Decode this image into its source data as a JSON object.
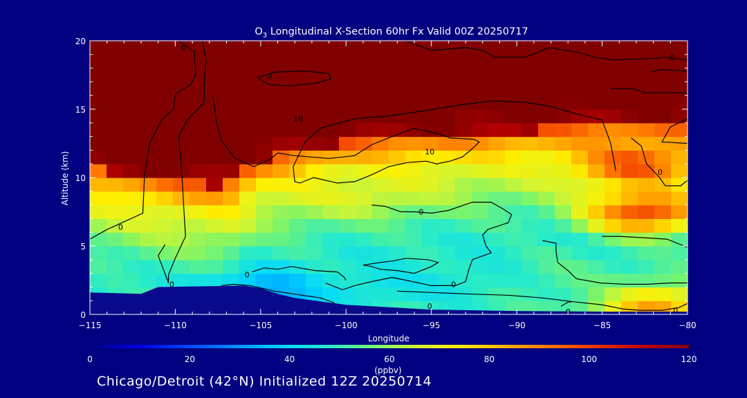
{
  "chart_data": {
    "type": "heatmap",
    "title_prefix": "O",
    "title_subscript": "3",
    "title_rest": " Longitudinal X-Section 60hr  Fx Valid 00Z 20250717",
    "xlabel": "Longitude",
    "ylabel": "Altitude (km)",
    "xlim": [
      -115,
      -80
    ],
    "ylim": [
      0,
      20
    ],
    "xticks": [
      -115,
      -110,
      -105,
      -100,
      -95,
      -90,
      -85,
      -80
    ],
    "xtick_labels": [
      "−115",
      "−110",
      "−105",
      "−100",
      "−95",
      "−90",
      "−85",
      "−80"
    ],
    "yticks": [
      0,
      5,
      10,
      15,
      20
    ],
    "ytick_labels": [
      "0",
      "5",
      "10",
      "15",
      "20"
    ],
    "colorbar": {
      "label": "(ppbv)",
      "min": 0,
      "max": 120,
      "ticks": [
        0,
        20,
        40,
        60,
        80,
        100,
        120
      ],
      "tick_labels": [
        "0",
        "20",
        "40",
        "60",
        "80",
        "100",
        "120"
      ]
    },
    "field_description": "Ozone mixing ratio (ppbv) vs longitude and altitude",
    "ozone_profile_km": [
      [
        0,
        50
      ],
      [
        2,
        47
      ],
      [
        4,
        52
      ],
      [
        6,
        62
      ],
      [
        8,
        72
      ],
      [
        10,
        95
      ],
      [
        12,
        112
      ],
      [
        14,
        125
      ]
    ],
    "tropopause_km": [
      [
        -115,
        10.6
      ],
      [
        -110,
        9.7
      ],
      [
        -107,
        9.4
      ],
      [
        -105,
        11.2
      ],
      [
        -100,
        12.5
      ],
      [
        -95,
        13.0
      ],
      [
        -90,
        13.4
      ],
      [
        -85,
        13.8
      ],
      [
        -80,
        13.8
      ]
    ],
    "terrain_km": [
      [
        -115,
        1.6
      ],
      [
        -112,
        1.5
      ],
      [
        -111,
        2.0
      ],
      [
        -106,
        2.1
      ],
      [
        -105,
        1.9
      ],
      [
        -104,
        1.5
      ],
      [
        -103,
        1.2
      ],
      [
        -100,
        0.7
      ],
      [
        -95,
        0.35
      ],
      [
        -90,
        0.25
      ],
      [
        -85,
        0.2
      ],
      [
        -80,
        0.2
      ]
    ],
    "anomalies": [
      {
        "lon": -82.5,
        "alt_km": 7.5,
        "value": 100
      },
      {
        "lon": -83,
        "alt_km": 11,
        "value": 98
      },
      {
        "lon": -82,
        "alt_km": 0.6,
        "value": 85
      },
      {
        "lon": -99,
        "alt_km": 9,
        "value": 68
      },
      {
        "lon": -98,
        "alt_km": 2.0,
        "value": 42
      },
      {
        "lon": -93,
        "alt_km": 2.5,
        "value": 44
      },
      {
        "lon": -105,
        "alt_km": 1.6,
        "value": 30
      },
      {
        "lon": -87,
        "alt_km": 2.5,
        "value": 52
      }
    ],
    "contour_labels": [
      {
        "text": "0",
        "lon": -109.5,
        "alt_km": 19.5
      },
      {
        "text": "0",
        "lon": -80.9,
        "alt_km": 18.8
      },
      {
        "text": "0",
        "lon": -104.5,
        "alt_km": 17.4
      },
      {
        "text": "10",
        "lon": -102.8,
        "alt_km": 14.3
      },
      {
        "text": "10",
        "lon": -95.1,
        "alt_km": 11.9
      },
      {
        "text": "0",
        "lon": -113.2,
        "alt_km": 6.4
      },
      {
        "text": "0",
        "lon": -95.6,
        "alt_km": 7.5
      },
      {
        "text": "0",
        "lon": -81.6,
        "alt_km": 10.4
      },
      {
        "text": "0",
        "lon": -105.8,
        "alt_km": 2.9
      },
      {
        "text": "0",
        "lon": -110.2,
        "alt_km": 2.2
      },
      {
        "text": "0",
        "lon": -95.1,
        "alt_km": 0.6
      },
      {
        "text": "0",
        "lon": -93.7,
        "alt_km": 2.2
      },
      {
        "text": "0",
        "lon": -87.0,
        "alt_km": 0.2
      },
      {
        "text": "0",
        "lon": -80.7,
        "alt_km": 0.3
      }
    ],
    "contours": [
      [
        [
          -109.8,
          20
        ],
        [
          -108.9,
          19.2
        ],
        [
          -108.8,
          17.6
        ],
        [
          -109.1,
          16.8
        ],
        [
          -110,
          16.1
        ],
        [
          -110.1,
          15
        ],
        [
          -110.8,
          14.2
        ],
        [
          -111.5,
          12.5
        ],
        [
          -111.8,
          10.2
        ],
        [
          -111.9,
          7.4
        ],
        [
          -114,
          6.2
        ],
        [
          -115,
          5.5
        ]
      ],
      [
        [
          -108.4,
          20
        ],
        [
          -108.2,
          18.5
        ],
        [
          -108.3,
          17.1
        ],
        [
          -108.3,
          15.5
        ],
        [
          -109.3,
          14.2
        ],
        [
          -109.8,
          13
        ],
        [
          -109.6,
          10
        ],
        [
          -109.5,
          7.7
        ],
        [
          -109.4,
          5.7
        ],
        [
          -110,
          4.1
        ],
        [
          -110.4,
          2.9
        ],
        [
          -110.4,
          2.3
        ]
      ],
      [
        [
          -107.8,
          16
        ],
        [
          -107.6,
          14.1
        ],
        [
          -107.3,
          12.7
        ],
        [
          -106.5,
          11.4
        ],
        [
          -105.4,
          10.8
        ],
        [
          -104.5,
          11.3
        ],
        [
          -104,
          11.8
        ],
        [
          -103,
          11.6
        ],
        [
          -102,
          11.5
        ],
        [
          -101,
          11.4
        ],
        [
          -99.5,
          11.6
        ],
        [
          -98.5,
          12.4
        ],
        [
          -97.3,
          13
        ],
        [
          -96,
          13.6
        ],
        [
          -94.6,
          13.2
        ],
        [
          -93.9,
          12.9
        ],
        [
          -92.5,
          12.8
        ],
        [
          -92.2,
          12.6
        ],
        [
          -92.7,
          12
        ],
        [
          -93.2,
          11.5
        ],
        [
          -93.9,
          11.2
        ],
        [
          -94.7,
          11
        ],
        [
          -95.3,
          11.2
        ],
        [
          -96.4,
          11.1
        ],
        [
          -97.5,
          10.8
        ],
        [
          -98.5,
          10.2
        ],
        [
          -99.5,
          9.7
        ],
        [
          -100.5,
          9.6
        ],
        [
          -101.9,
          10
        ],
        [
          -102.7,
          9.6
        ],
        [
          -103,
          9.7
        ],
        [
          -103.1,
          10.8
        ],
        [
          -102.4,
          12.6
        ],
        [
          -101.5,
          13.6
        ],
        [
          -99.5,
          14.3
        ],
        [
          -97.5,
          14.5
        ],
        [
          -95.3,
          14.9
        ],
        [
          -93.4,
          15.3
        ],
        [
          -91.5,
          15.6
        ],
        [
          -89.5,
          15.5
        ],
        [
          -88,
          15.2
        ],
        [
          -87.2,
          14.9
        ],
        [
          -86.3,
          14.6
        ],
        [
          -85,
          14.2
        ],
        [
          -84.5,
          12.5
        ],
        [
          -84.2,
          10.5
        ]
      ],
      [
        [
          -105.2,
          17.3
        ],
        [
          -104.2,
          17.7
        ],
        [
          -102.5,
          17.8
        ],
        [
          -101,
          17.6
        ],
        [
          -100.9,
          17.2
        ],
        [
          -101.8,
          16.9
        ],
        [
          -103.3,
          16.7
        ],
        [
          -104.5,
          16.8
        ],
        [
          -105.2,
          17.3
        ]
      ],
      [
        [
          -96.5,
          20
        ],
        [
          -95,
          19.3
        ],
        [
          -93,
          19.5
        ],
        [
          -92,
          19.3
        ],
        [
          -91.3,
          18.8
        ],
        [
          -89.5,
          18.8
        ],
        [
          -88.1,
          19.5
        ],
        [
          -86.2,
          19.1
        ],
        [
          -85.5,
          18.8
        ],
        [
          -84.3,
          18.6
        ],
        [
          -82.1,
          18.7
        ],
        [
          -81.3,
          18.8
        ],
        [
          -80.8,
          18.7
        ],
        [
          -80,
          18.6
        ]
      ],
      [
        [
          -84.5,
          16.5
        ],
        [
          -83.2,
          16.5
        ],
        [
          -82.5,
          16.2
        ],
        [
          -80,
          16.2
        ]
      ],
      [
        [
          -82.1,
          17.7
        ],
        [
          -81.6,
          17.9
        ],
        [
          -80.2,
          17.8
        ],
        [
          -80,
          17.7
        ]
      ],
      [
        [
          -83.3,
          12.9
        ],
        [
          -82.7,
          12.3
        ],
        [
          -82.4,
          11
        ],
        [
          -81.7,
          10.1
        ],
        [
          -81.3,
          9.4
        ],
        [
          -80.4,
          9.4
        ],
        [
          -80,
          9.8
        ]
      ],
      [
        [
          -80,
          14.3
        ],
        [
          -81,
          13.7
        ],
        [
          -81.5,
          12.6
        ],
        [
          -80,
          12.5
        ]
      ],
      [
        [
          -98.5,
          8
        ],
        [
          -97.7,
          7.9
        ],
        [
          -96.8,
          7.5
        ],
        [
          -96,
          7.5
        ],
        [
          -95,
          7.4
        ],
        [
          -94,
          7.6
        ],
        [
          -92.6,
          8.2
        ],
        [
          -91.5,
          8.2
        ],
        [
          -90.8,
          7.7
        ],
        [
          -90.3,
          7.3
        ],
        [
          -90.5,
          6.7
        ],
        [
          -91.7,
          6.2
        ],
        [
          -92,
          5.8
        ],
        [
          -91.8,
          5
        ],
        [
          -91.5,
          4.5
        ],
        [
          -92.6,
          4
        ],
        [
          -92.8,
          3.3
        ],
        [
          -93,
          2.4
        ],
        [
          -93.6,
          2.1
        ],
        [
          -95,
          2.1
        ],
        [
          -96.5,
          2.5
        ],
        [
          -97.3,
          2.7
        ],
        [
          -98.5,
          2.4
        ],
        [
          -99.5,
          2.1
        ],
        [
          -100.2,
          1.8
        ],
        [
          -100.6,
          2
        ],
        [
          -101.2,
          2.3
        ]
      ],
      [
        [
          -105.5,
          3.1
        ],
        [
          -104.8,
          3.4
        ],
        [
          -104,
          3.3
        ],
        [
          -103.2,
          3.5
        ],
        [
          -101.8,
          3.2
        ],
        [
          -100.5,
          3.1
        ],
        [
          -100.1,
          2.7
        ],
        [
          -100,
          2.5
        ]
      ],
      [
        [
          -99,
          3.6
        ],
        [
          -98.5,
          3.5
        ],
        [
          -98,
          3.3
        ],
        [
          -97,
          3.2
        ],
        [
          -96,
          3
        ],
        [
          -95,
          3.5
        ],
        [
          -94.6,
          3.8
        ],
        [
          -95.2,
          4
        ],
        [
          -96.5,
          4.1
        ],
        [
          -97.3,
          3.9
        ],
        [
          -98,
          3.8
        ],
        [
          -99,
          3.6
        ]
      ],
      [
        [
          -88.5,
          5.4
        ],
        [
          -87.7,
          5.2
        ],
        [
          -87.7,
          4.6
        ],
        [
          -87.6,
          3.8
        ],
        [
          -87,
          3.2
        ],
        [
          -86.5,
          2.6
        ],
        [
          -85.1,
          2.3
        ],
        [
          -83.7,
          2.2
        ],
        [
          -82.4,
          2.2
        ],
        [
          -81,
          2.3
        ],
        [
          -80,
          2.3
        ]
      ],
      [
        [
          -85,
          5.7
        ],
        [
          -84,
          5.7
        ],
        [
          -82.5,
          5.6
        ],
        [
          -81.2,
          5.5
        ],
        [
          -80.6,
          5.2
        ],
        [
          -80,
          4.9
        ]
      ],
      [
        [
          -97,
          1.7
        ],
        [
          -95,
          1.6
        ],
        [
          -93,
          1.5
        ],
        [
          -90.5,
          1.4
        ],
        [
          -88.5,
          1.2
        ],
        [
          -86.5,
          0.9
        ],
        [
          -85,
          0.7
        ],
        [
          -83.8,
          0.4
        ],
        [
          -82.8,
          0.3
        ],
        [
          -81.5,
          0.3
        ],
        [
          -80.5,
          0.5
        ],
        [
          -80,
          0.8
        ]
      ],
      [
        [
          -107.3,
          2.1
        ],
        [
          -106.6,
          2.2
        ],
        [
          -105.6,
          2.1
        ],
        [
          -104.2,
          1.7
        ],
        [
          -103.1,
          1.5
        ],
        [
          -101.5,
          1.2
        ],
        [
          -100.8,
          0.9
        ],
        [
          -100.5,
          0.7
        ]
      ],
      [
        [
          -87.4,
          0.6
        ],
        [
          -87,
          0.9
        ],
        [
          -86.8,
          0.9
        ]
      ],
      [
        [
          -110.6,
          5.1
        ],
        [
          -111,
          4.3
        ],
        [
          -110.4,
          2.3
        ]
      ]
    ]
  },
  "footer_text": "Chicago/Detroit (42°N) Initialized 12Z 20250714",
  "colors": {
    "background": "#000080",
    "axis": "#ffffff",
    "contour": "#000000",
    "terrain": "#0a0a8c"
  }
}
